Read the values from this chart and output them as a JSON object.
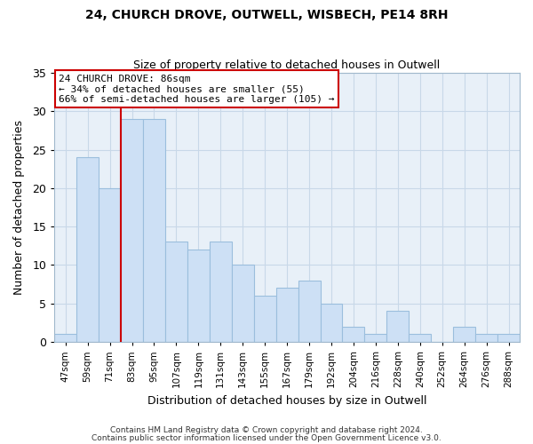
{
  "title": "24, CHURCH DROVE, OUTWELL, WISBECH, PE14 8RH",
  "subtitle": "Size of property relative to detached houses in Outwell",
  "xlabel": "Distribution of detached houses by size in Outwell",
  "ylabel": "Number of detached properties",
  "footer_line1": "Contains HM Land Registry data © Crown copyright and database right 2024.",
  "footer_line2": "Contains public sector information licensed under the Open Government Licence v3.0.",
  "bin_labels": [
    "47sqm",
    "59sqm",
    "71sqm",
    "83sqm",
    "95sqm",
    "107sqm",
    "119sqm",
    "131sqm",
    "143sqm",
    "155sqm",
    "167sqm",
    "179sqm",
    "192sqm",
    "204sqm",
    "216sqm",
    "228sqm",
    "240sqm",
    "252sqm",
    "264sqm",
    "276sqm",
    "288sqm"
  ],
  "values": [
    1,
    24,
    20,
    29,
    29,
    13,
    12,
    13,
    10,
    6,
    7,
    8,
    5,
    2,
    1,
    4,
    1,
    0,
    2,
    1,
    1
  ],
  "bar_color": "#cde0f5",
  "bar_edge_color": "#9bbedd",
  "red_line_bin_index": 3,
  "annotation_title": "24 CHURCH DROVE: 86sqm",
  "annotation_line2": "← 34% of detached houses are smaller (55)",
  "annotation_line3": "66% of semi-detached houses are larger (105) →",
  "annotation_box_color": "#ffffff",
  "annotation_box_edge_color": "#cc0000",
  "ylim": [
    0,
    35
  ],
  "yticks": [
    0,
    5,
    10,
    15,
    20,
    25,
    30,
    35
  ],
  "background_color": "#ffffff",
  "grid_color": "#c8d8e8",
  "axes_bg_color": "#e8f0f8"
}
